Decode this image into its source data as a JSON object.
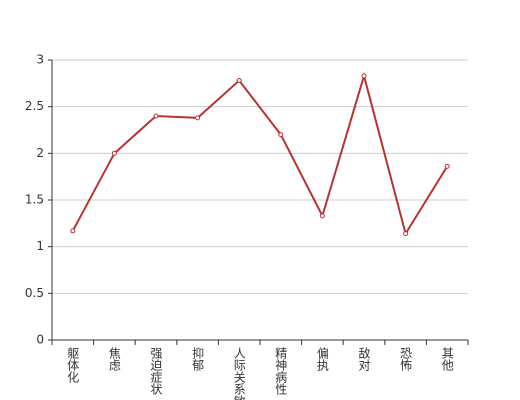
{
  "chart_data": {
    "type": "line",
    "categories": [
      "躯体化",
      "焦虑",
      "强迫症状",
      "抑郁",
      "人际关系敏感",
      "精神病性",
      "偏执",
      "敌对",
      "恐怖",
      "其他"
    ],
    "values": [
      1.17,
      2.0,
      2.4,
      2.38,
      2.78,
      2.2,
      1.33,
      2.83,
      1.14,
      1.86
    ],
    "color": "#b83232",
    "ylim": [
      0,
      3
    ],
    "yticks": [
      0,
      0.5,
      1,
      1.5,
      2,
      2.5,
      3
    ],
    "grid": true
  }
}
